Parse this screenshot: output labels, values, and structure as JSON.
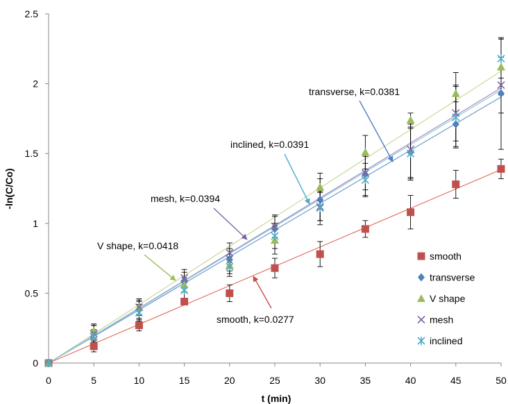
{
  "chart_data": {
    "type": "scatter",
    "xlabel": "t (min)",
    "ylabel": "-ln(C/Co)",
    "xlim": [
      0,
      50
    ],
    "ylim": [
      0,
      2.5
    ],
    "x_ticks": [
      "0",
      "5",
      "10",
      "15",
      "20",
      "25",
      "30",
      "35",
      "40",
      "45",
      "50"
    ],
    "y_ticks": [
      "0",
      "0.5",
      "1",
      "1.5",
      "2",
      "2.5"
    ],
    "grid": false,
    "legend_position": "lower-right",
    "x": [
      0,
      5,
      10,
      15,
      20,
      25,
      30,
      35,
      40,
      45,
      50
    ],
    "series": [
      {
        "name": "smooth",
        "marker": "square",
        "color": "#C0504D",
        "values": [
          0,
          0.12,
          0.27,
          0.44,
          0.5,
          0.68,
          0.78,
          0.96,
          1.08,
          1.28,
          1.39
        ],
        "err": [
          0,
          0.04,
          0.04,
          0.02,
          0.06,
          0.07,
          0.09,
          0.06,
          0.12,
          0.1,
          0.07
        ],
        "trend_slope": 0.0277,
        "trend_color": "#E3735E"
      },
      {
        "name": "transverse",
        "marker": "diamond",
        "color": "#4F81BD",
        "values": [
          0,
          0.22,
          0.38,
          0.58,
          0.74,
          0.96,
          1.17,
          1.35,
          1.51,
          1.71,
          1.93
        ],
        "err": [
          0,
          0.05,
          0.06,
          0.07,
          0.08,
          0.09,
          0.15,
          0.15,
          0.2,
          0.16,
          0.4
        ],
        "trend_slope": 0.0381,
        "trend_color": "#6F99C8"
      },
      {
        "name": "V shape",
        "marker": "triangle",
        "color": "#9BBB59",
        "values": [
          0,
          0.23,
          0.4,
          0.56,
          0.7,
          0.88,
          1.26,
          1.51,
          1.74,
          1.93,
          2.12
        ],
        "err": [
          0,
          0.05,
          0.05,
          0.05,
          0.06,
          0.1,
          0.1,
          0.12,
          0.05,
          0.15,
          0.2
        ],
        "trend_slope": 0.0418,
        "trend_color": "#C8D99A"
      },
      {
        "name": "mesh",
        "marker": "x",
        "color": "#8064A2",
        "values": [
          0,
          0.21,
          0.4,
          0.61,
          0.79,
          0.98,
          1.12,
          1.36,
          1.53,
          1.79,
          1.99
        ],
        "err": [
          0,
          0.06,
          0.06,
          0.06,
          0.07,
          0.08,
          0.1,
          0.12,
          0.2,
          0.2,
          0.2
        ],
        "trend_slope": 0.0394,
        "trend_color": "#9F8BBE"
      },
      {
        "name": "inclined",
        "marker": "asterisk",
        "color": "#4BACC6",
        "values": [
          0,
          0.19,
          0.36,
          0.52,
          0.69,
          0.91,
          1.11,
          1.31,
          1.5,
          1.76,
          2.18
        ],
        "err": [
          0,
          0.05,
          0.06,
          0.06,
          0.07,
          0.09,
          0.12,
          0.12,
          0.18,
          0.22,
          0.14
        ],
        "trend_slope": 0.0391,
        "trend_color": "#8CC8DA"
      }
    ],
    "annotations": [
      {
        "text": "transverse, k=0.0381",
        "color": "#4F81BD"
      },
      {
        "text": "inclined, k=0.0391",
        "color": "#4BACC6"
      },
      {
        "text": "mesh, k=0.0394",
        "color": "#8064A2"
      },
      {
        "text": "V shape, k=0.0418",
        "color": "#9BBB59"
      },
      {
        "text": "smooth, k=0.0277",
        "color": "#C0504D"
      }
    ]
  }
}
